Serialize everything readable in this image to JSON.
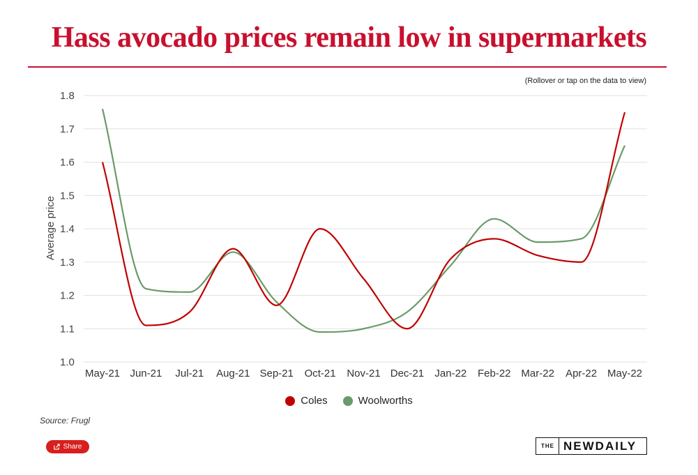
{
  "header": {
    "title": "Hass avocado prices remain low in supermarkets",
    "hint": "(Rollover or tap on the data to view)"
  },
  "colors": {
    "accent": "#c8102e",
    "coles": "#c00000",
    "woolworths": "#6a9a6a"
  },
  "chart_data": {
    "type": "line",
    "title": "Hass avocado prices remain low in supermarkets",
    "xlabel": "",
    "ylabel": "Average price",
    "ylim": [
      1.0,
      1.8
    ],
    "yticks": [
      "1.0",
      "1.1",
      "1.2",
      "1.3",
      "1.4",
      "1.5",
      "1.6",
      "1.7",
      "1.8"
    ],
    "grid": true,
    "legend_position": "bottom",
    "categories": [
      "May-21",
      "Jun-21",
      "Jul-21",
      "Aug-21",
      "Sep-21",
      "Oct-21",
      "Nov-21",
      "Dec-21",
      "Jan-22",
      "Feb-22",
      "Mar-22",
      "Apr-22",
      "May-22"
    ],
    "series": [
      {
        "name": "Coles",
        "color": "#c00000",
        "values": [
          1.6,
          1.11,
          1.15,
          1.34,
          1.17,
          1.4,
          1.25,
          1.1,
          1.31,
          1.37,
          1.32,
          1.3,
          1.75
        ]
      },
      {
        "name": "Woolworths",
        "color": "#6a9a6a",
        "values": [
          1.76,
          1.22,
          1.21,
          1.33,
          1.18,
          1.09,
          1.1,
          1.15,
          1.29,
          1.43,
          1.36,
          1.37,
          1.65
        ]
      }
    ]
  },
  "footer": {
    "source": "Source: Frugl",
    "share_label": "Share",
    "brand_the": "THE",
    "brand_name": "NEWDAILY"
  }
}
